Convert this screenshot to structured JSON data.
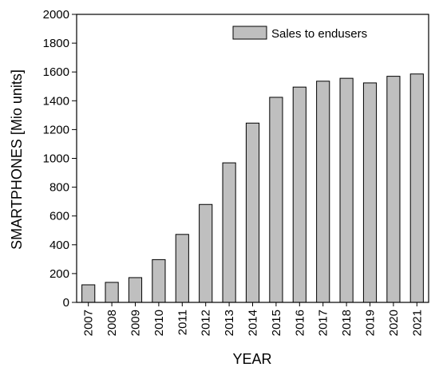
{
  "chart_data": {
    "type": "bar",
    "title": "",
    "xlabel": "YEAR",
    "ylabel": "SMARTPHONES [Mio units]",
    "categories": [
      "2007",
      "2008",
      "2009",
      "2010",
      "2011",
      "2012",
      "2013",
      "2014",
      "2015",
      "2016",
      "2017",
      "2018",
      "2019",
      "2020",
      "2021"
    ],
    "series": [
      {
        "name": "Sales to endusers",
        "values": [
          122,
          139,
          172,
          297,
          472,
          680,
          969,
          1245,
          1424,
          1495,
          1536,
          1556,
          1524,
          1570,
          1586
        ]
      }
    ],
    "ylim": [
      0,
      2000
    ],
    "yticks": [
      "0",
      "200",
      "400",
      "600",
      "800",
      "1000",
      "1200",
      "1400",
      "1600",
      "1800",
      "2000"
    ],
    "grid": false,
    "legend_position": "top-right",
    "colors": {
      "bar_fill": "#bfbfbf",
      "bar_stroke": "#000000"
    }
  }
}
